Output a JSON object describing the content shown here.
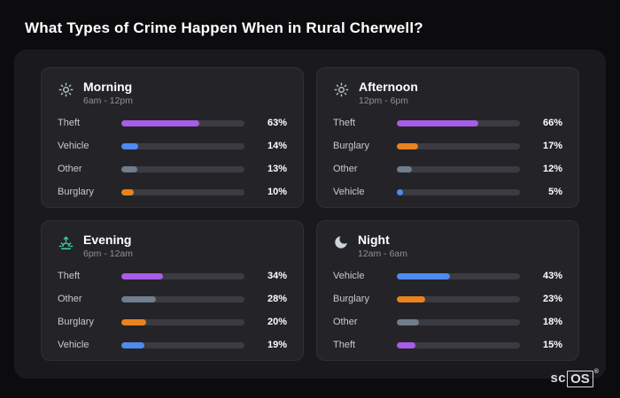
{
  "page": {
    "title": "What Types of Crime Happen When in Rural Cherwell?"
  },
  "logo": {
    "prefix": "sc",
    "boxed": "OS",
    "registered": "®"
  },
  "colors": {
    "Theft": "#a85ce8",
    "Vehicle": "#4d8bf0",
    "Other": "#6f7d8c",
    "Burglary": "#e8831d",
    "track": "#3b3b41",
    "panel": "#1a1a1d",
    "card": "#242428",
    "background": "#0c0c0e"
  },
  "chart_data": {
    "type": "bar",
    "title": "What Types of Crime Happen When in Rural Cherwell?",
    "unit": "%",
    "xlim": [
      0,
      100
    ],
    "grid": false,
    "legend": "none",
    "groups": [
      {
        "title": "Morning",
        "subtitle": "6am - 12pm",
        "icon": "sun-icon",
        "icon_color": "#b5c6c3",
        "rows": [
          {
            "label": "Theft",
            "value": 63,
            "pct": "63%"
          },
          {
            "label": "Vehicle",
            "value": 14,
            "pct": "14%"
          },
          {
            "label": "Other",
            "value": 13,
            "pct": "13%"
          },
          {
            "label": "Burglary",
            "value": 10,
            "pct": "10%"
          }
        ]
      },
      {
        "title": "Afternoon",
        "subtitle": "12pm - 6pm",
        "icon": "sun-icon",
        "icon_color": "#b5c6c3",
        "rows": [
          {
            "label": "Theft",
            "value": 66,
            "pct": "66%"
          },
          {
            "label": "Burglary",
            "value": 17,
            "pct": "17%"
          },
          {
            "label": "Other",
            "value": 12,
            "pct": "12%"
          },
          {
            "label": "Vehicle",
            "value": 5,
            "pct": "5%"
          }
        ]
      },
      {
        "title": "Evening",
        "subtitle": "6pm - 12am",
        "icon": "sunset-icon",
        "icon_color": "#3fd0a0",
        "rows": [
          {
            "label": "Theft",
            "value": 34,
            "pct": "34%"
          },
          {
            "label": "Other",
            "value": 28,
            "pct": "28%"
          },
          {
            "label": "Burglary",
            "value": 20,
            "pct": "20%"
          },
          {
            "label": "Vehicle",
            "value": 19,
            "pct": "19%"
          }
        ]
      },
      {
        "title": "Night",
        "subtitle": "12am - 6am",
        "icon": "moon-icon",
        "icon_color": "#ccd3da",
        "rows": [
          {
            "label": "Vehicle",
            "value": 43,
            "pct": "43%"
          },
          {
            "label": "Burglary",
            "value": 23,
            "pct": "23%"
          },
          {
            "label": "Other",
            "value": 18,
            "pct": "18%"
          },
          {
            "label": "Theft",
            "value": 15,
            "pct": "15%"
          }
        ]
      }
    ]
  }
}
